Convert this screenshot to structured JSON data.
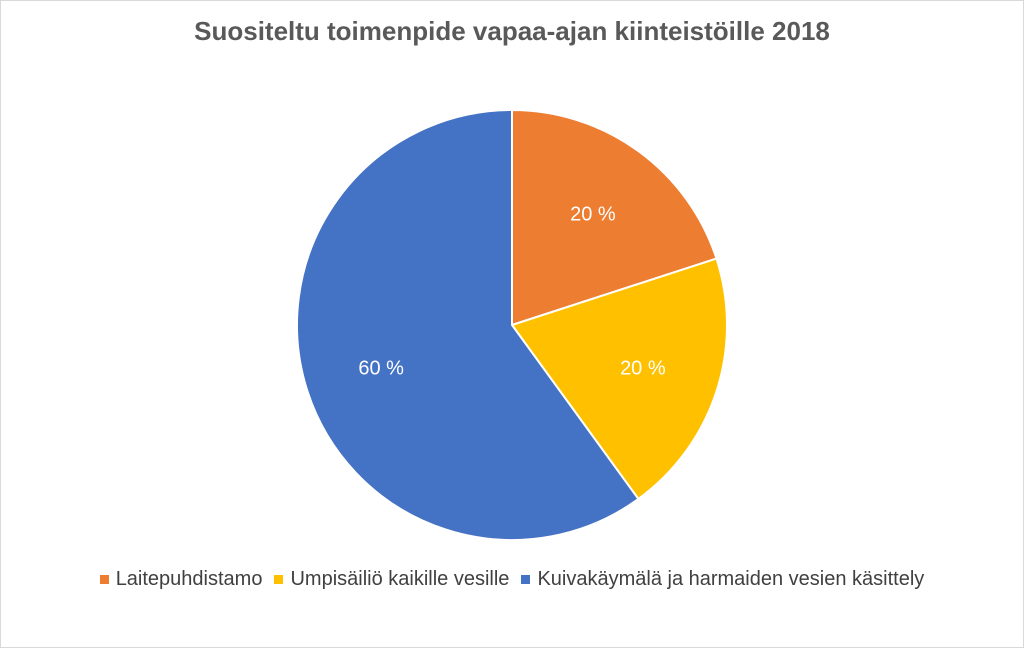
{
  "chart_data": {
    "type": "pie",
    "title": "Suositeltu toimenpide vapaa-ajan kiinteistöille 2018",
    "slices": [
      {
        "label": "Laitepuhdistamo",
        "value": 20,
        "data_label": "20 %",
        "color": "#ED7D31"
      },
      {
        "label": "Umpisäiliö kaikille vesille",
        "value": 20,
        "data_label": "20 %",
        "color": "#FFC000"
      },
      {
        "label": "Kuivakäymälä ja harmaiden vesien käsittely",
        "value": 60,
        "data_label": "60 %",
        "color": "#4472C4"
      }
    ],
    "legend_position": "bottom"
  }
}
